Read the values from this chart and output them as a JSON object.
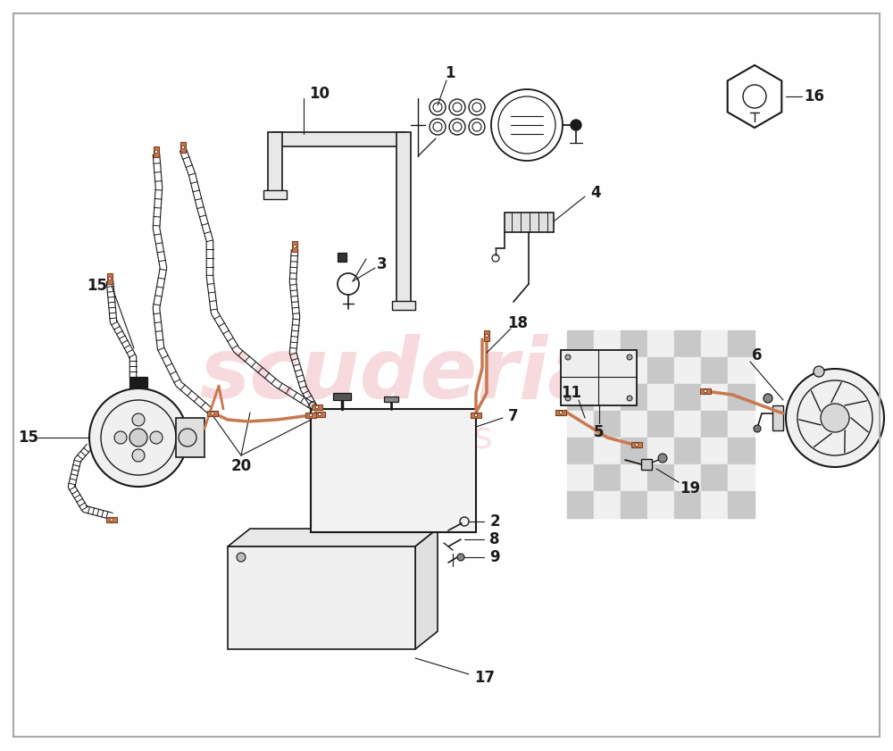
{
  "background_color": "#FEFEFE",
  "border_color": "#AAAAAA",
  "line_color": "#1a1a1a",
  "copper_color": "#c87850",
  "watermark_color_main": "#f2b8c0",
  "watermark_color_sub": "#f2b8c0",
  "checker_color1": "#c8c8c8",
  "checker_color2": "#f0f0f0",
  "figsize": [
    10.0,
    8.41
  ],
  "dpi": 100
}
